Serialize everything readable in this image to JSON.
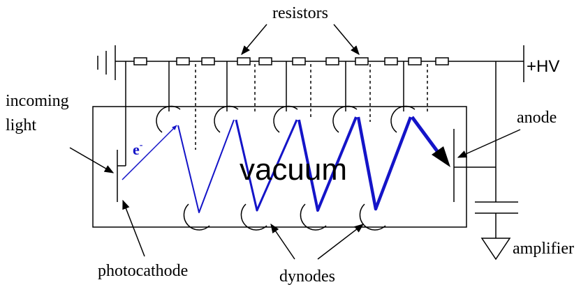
{
  "labels": {
    "resistors": "resistors",
    "hv": "+HV",
    "incoming_light": [
      "incoming",
      "light"
    ],
    "electron": {
      "text": "e",
      "superscript": "-"
    },
    "vacuum": "vacuum",
    "anode": "anode",
    "photocathode": "photocathode",
    "dynodes": "dynodes",
    "amplifier": "amplifier"
  }
}
